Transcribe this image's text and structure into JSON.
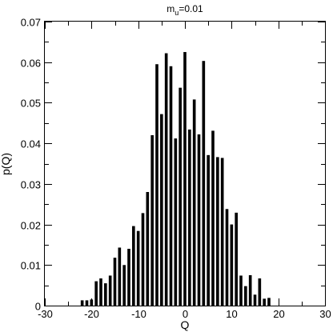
{
  "chart_data": {
    "type": "bar",
    "title": {
      "base": "m",
      "sub": "u",
      "rest": "=0.01"
    },
    "xlabel": "Q",
    "ylabel": "p(Q)",
    "xlim": [
      -30,
      30
    ],
    "ylim": [
      0,
      0.07
    ],
    "xticks": [
      "-30",
      "-20",
      "-10",
      "0",
      "10",
      "20",
      "30"
    ],
    "yticks": [
      "0",
      "0.01",
      "0.02",
      "0.03",
      "0.04",
      "0.05",
      "0.06",
      "0.07"
    ],
    "grid": false,
    "legend": "none",
    "bar_color": "#000000",
    "x": [
      -22,
      -21,
      -20,
      -19,
      -18,
      -17,
      -16,
      -15,
      -14,
      -13,
      -12,
      -11,
      -10,
      -9,
      -8,
      -7,
      -6,
      -5,
      -4,
      -3,
      -2,
      -1,
      0,
      1,
      2,
      3,
      4,
      5,
      6,
      7,
      8,
      9,
      10,
      11,
      12,
      13,
      14,
      15,
      16,
      17,
      18
    ],
    "values": [
      0.0013,
      0.0013,
      0.0015,
      0.006,
      0.0067,
      0.0055,
      0.0074,
      0.0118,
      0.0143,
      0.01,
      0.014,
      0.0196,
      0.0184,
      0.0228,
      0.028,
      0.042,
      0.0595,
      0.0472,
      0.0622,
      0.059,
      0.0412,
      0.0537,
      0.0625,
      0.0434,
      0.0508,
      0.0422,
      0.0603,
      0.0371,
      0.0431,
      0.0366,
      0.0364,
      0.0238,
      0.02,
      0.0229,
      0.0074,
      0.0048,
      0.0075,
      0.0027,
      0.0067,
      0.0017,
      0.0019
    ]
  }
}
